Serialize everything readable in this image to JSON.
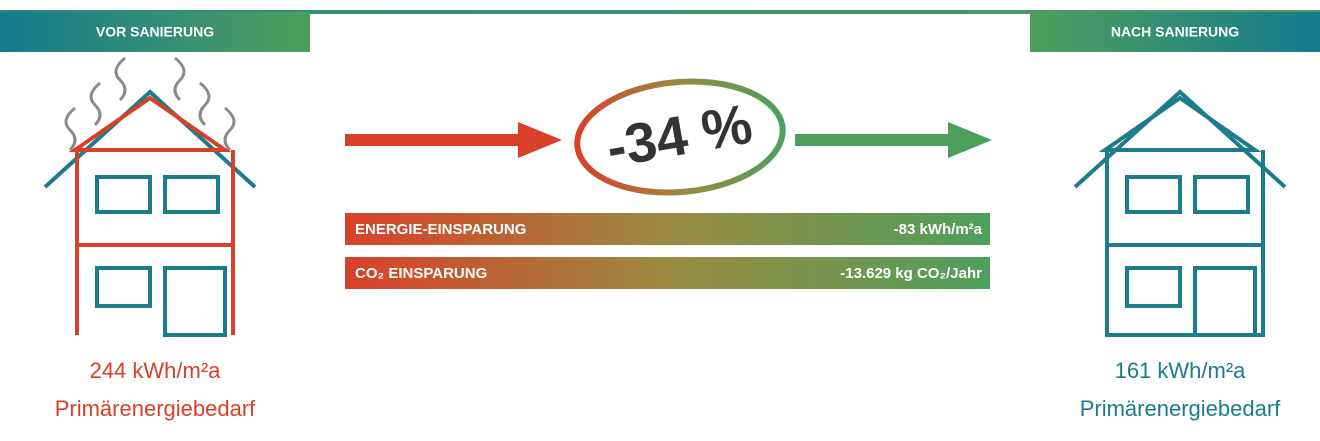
{
  "before": {
    "label": "VOR SANIERUNG",
    "value": "244 kWh/m²a",
    "caption": "Primärenergiebedarf"
  },
  "after": {
    "label": "NACH SANIERUNG",
    "value": "161 kWh/m²a",
    "caption": "Primärenergiebedarf"
  },
  "reduction": "-34 %",
  "savings": [
    {
      "label": "ENERGIE-EINSPARUNG",
      "value": "-83 kWh/m²a"
    },
    {
      "label": "CO₂ EINSPARUNG",
      "value": "-13.629 kg CO₂/Jahr"
    }
  ]
}
